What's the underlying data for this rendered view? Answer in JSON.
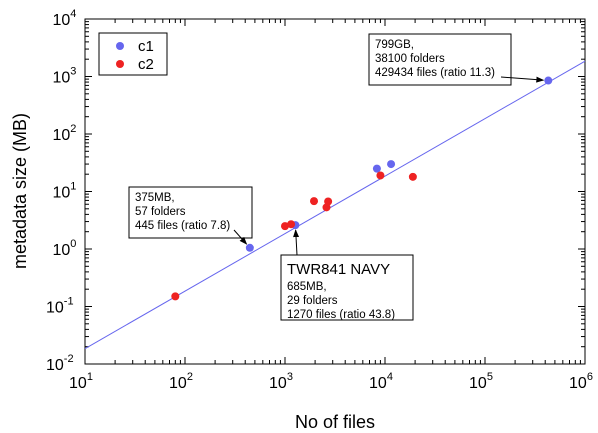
{
  "chart_data": {
    "type": "scatter",
    "xlabel": "No of files",
    "ylabel": "metadata size (MB)",
    "xscale": "log",
    "yscale": "log",
    "xlim": [
      10,
      1000000
    ],
    "ylim": [
      0.01,
      10000
    ],
    "x_ticks": [
      {
        "base": "10",
        "exp": "1"
      },
      {
        "base": "10",
        "exp": "2"
      },
      {
        "base": "10",
        "exp": "3"
      },
      {
        "base": "10",
        "exp": "4"
      },
      {
        "base": "10",
        "exp": "5"
      },
      {
        "base": "10",
        "exp": "6"
      }
    ],
    "y_ticks": [
      {
        "base": "10",
        "exp": "-2"
      },
      {
        "base": "10",
        "exp": "-1"
      },
      {
        "base": "10",
        "exp": "0"
      },
      {
        "base": "10",
        "exp": "1"
      },
      {
        "base": "10",
        "exp": "2"
      },
      {
        "base": "10",
        "exp": "3"
      },
      {
        "base": "10",
        "exp": "4"
      }
    ],
    "legend_position": "top-left",
    "grid": false,
    "series": [
      {
        "name": "c1",
        "color": "#6666ee",
        "points": [
          {
            "x": 445,
            "y": 1.05
          },
          {
            "x": 1270,
            "y": 2.6
          },
          {
            "x": 8300,
            "y": 25
          },
          {
            "x": 11500,
            "y": 30
          },
          {
            "x": 429434,
            "y": 850
          }
        ]
      },
      {
        "name": "c2",
        "color": "#ee2222",
        "points": [
          {
            "x": 80,
            "y": 0.15
          },
          {
            "x": 1000,
            "y": 2.5
          },
          {
            "x": 1150,
            "y": 2.7
          },
          {
            "x": 1950,
            "y": 6.8
          },
          {
            "x": 2600,
            "y": 5.3
          },
          {
            "x": 2700,
            "y": 6.7
          },
          {
            "x": 9000,
            "y": 19
          },
          {
            "x": 19000,
            "y": 18
          }
        ]
      }
    ],
    "fit_line": {
      "color": "#6666ee",
      "from": {
        "x": 10,
        "y": 0.0185
      },
      "to": {
        "x": 1000000,
        "y": 1850
      }
    },
    "annotations": [
      {
        "lines": [
          "799GB,",
          "38100 folders",
          "429434 files (ratio 11.3)"
        ],
        "target": {
          "x": 429434,
          "y": 850
        }
      },
      {
        "lines": [
          "375MB,",
          "57 folders",
          "445 files (ratio 7.8)"
        ],
        "target": {
          "x": 445,
          "y": 1.05
        }
      },
      {
        "title": "TWR841 NAVY",
        "lines": [
          "685MB,",
          "29 folders",
          "1270 files (ratio 43.8)"
        ],
        "target": {
          "x": 1270,
          "y": 2.6
        }
      }
    ]
  }
}
